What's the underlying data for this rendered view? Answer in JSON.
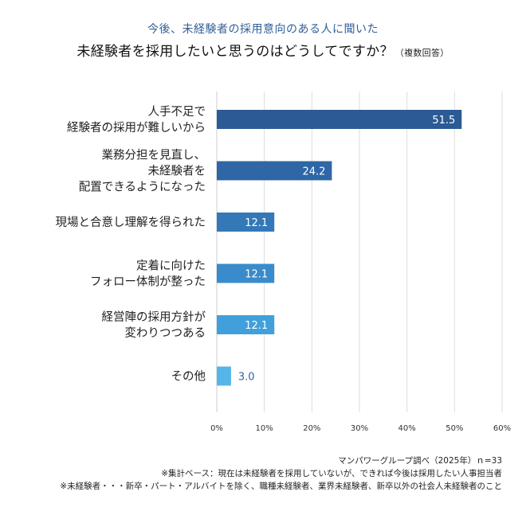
{
  "header": {
    "subtitle": "今後、未経験者の採用意向のある人に聞いた",
    "title": "未経験者を採用したいと思うのはどうしてですか？",
    "title_note": "（複数回答）"
  },
  "chart_data": {
    "type": "bar",
    "orientation": "horizontal",
    "categories": [
      [
        "人手不足で",
        "経験者の採用が難しいから"
      ],
      [
        "業務分担を見直し、",
        "未経験者を",
        "配置できるようになった"
      ],
      [
        "現場と合意し理解を得られた"
      ],
      [
        "定着に向けた",
        "フォロー体制が整った"
      ],
      [
        "経営陣の採用方針が",
        "変わりつつある"
      ],
      [
        "その他"
      ]
    ],
    "values": [
      51.5,
      24.2,
      12.1,
      12.1,
      12.1,
      3.0
    ],
    "value_labels": [
      "51.5",
      "24.2",
      "12.1",
      "12.1",
      "12.1",
      "3.0"
    ],
    "bar_colors": [
      "#2b5a95",
      "#2e66a6",
      "#3478b8",
      "#3a8bcb",
      "#41a0dc",
      "#55b5e8"
    ],
    "value_label_colors": [
      "#ffffff",
      "#ffffff",
      "#ffffff",
      "#ffffff",
      "#ffffff",
      "#2e66a6"
    ],
    "xlim": [
      0,
      60
    ],
    "xticks": [
      0,
      10,
      20,
      30,
      40,
      50,
      60
    ],
    "xtick_labels": [
      "0%",
      "10%",
      "20%",
      "30%",
      "40%",
      "50%",
      "60%"
    ],
    "grid": true,
    "legend": "none"
  },
  "footer": {
    "source": "マンパワーグループ調べ（2025年）ｎ=33",
    "base_note": "※集計ベース：現在は未経験者を採用していないが、できれば今後は採用したい人事担当者",
    "definition_note": "※未経験者・・・新卒・パート・アルバイトを除く、職種未経験者、業界未経験者、新卒以外の社会人未経験者のこと"
  }
}
